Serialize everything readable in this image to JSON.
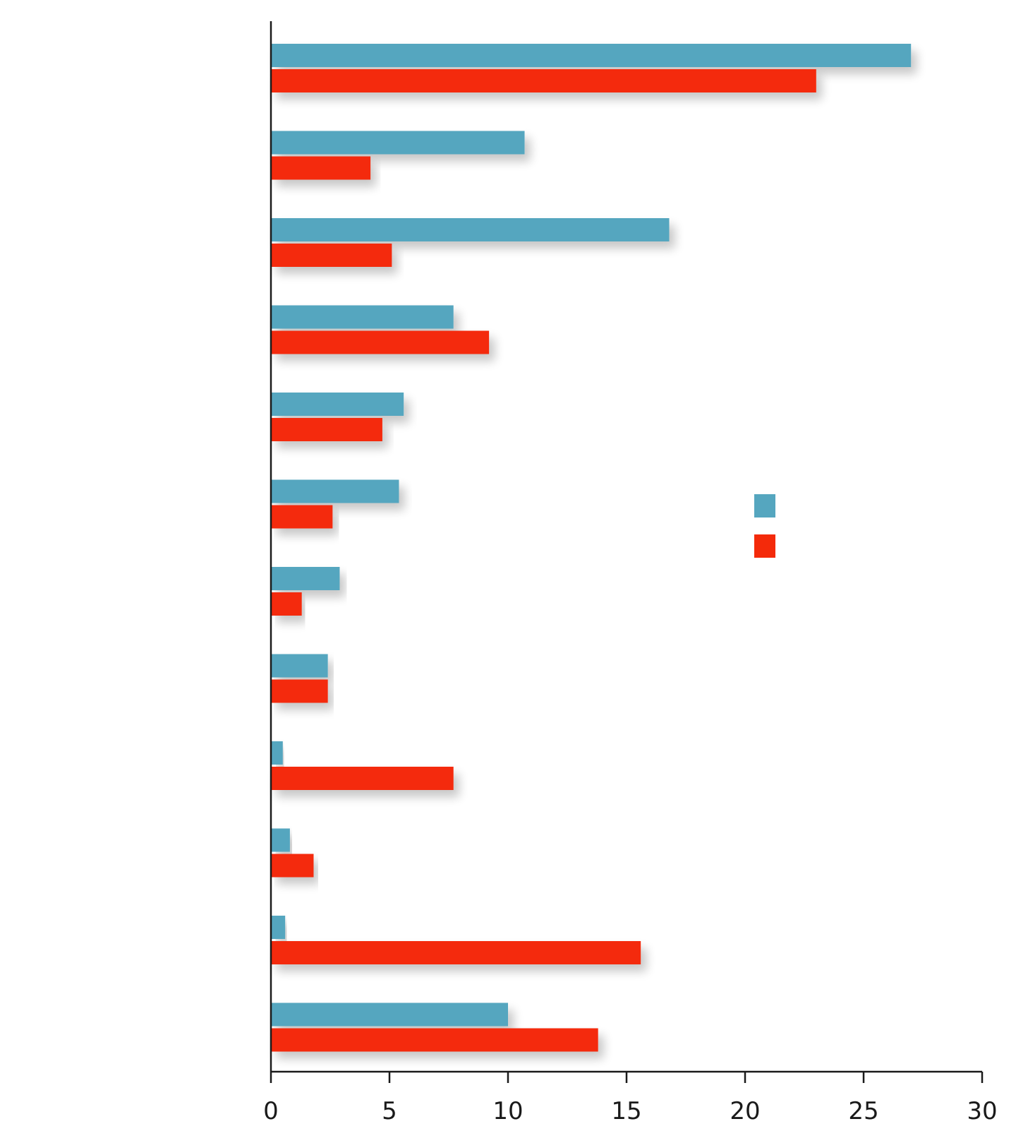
{
  "chart_data": {
    "type": "bar",
    "orientation": "horizontal",
    "title": "",
    "xlabel": "",
    "ylabel": "",
    "xlim": [
      0,
      30
    ],
    "x_ticks": [
      0,
      5,
      10,
      15,
      20,
      25,
      30
    ],
    "x_tick_labels": [
      "0",
      "5",
      "10",
      "15",
      "20",
      "25",
      "30"
    ],
    "categories": [
      "",
      "",
      "",
      "",
      "",
      "",
      "",
      "",
      "",
      "",
      "",
      ""
    ],
    "series": [
      {
        "color": "#55a6bf",
        "values": [
          27.0,
          10.7,
          16.8,
          7.7,
          5.6,
          5.4,
          2.9,
          2.4,
          0.5,
          0.8,
          0.6,
          10.0
        ]
      },
      {
        "color": "#f42a0a",
        "values": [
          23.0,
          4.2,
          5.1,
          9.2,
          4.7,
          2.6,
          1.3,
          2.4,
          7.7,
          1.8,
          15.6,
          13.8
        ]
      }
    ],
    "legend": {
      "position": "right",
      "entries": [
        "",
        ""
      ]
    },
    "grid": false
  }
}
